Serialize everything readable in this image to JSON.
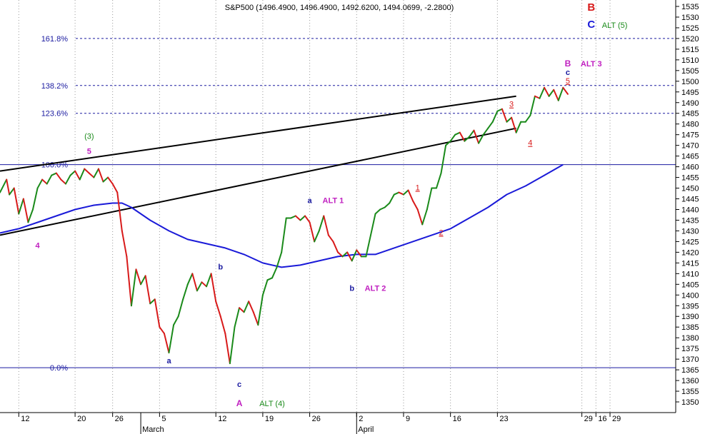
{
  "chart_data": {
    "type": "line",
    "title": "S&P500 (1496.4900, 1496.4900, 1492.6200, 1494.0699, -2.2800)",
    "ylim": [
      1345,
      1538
    ],
    "y_ticks": [
      1350,
      1355,
      1360,
      1365,
      1370,
      1375,
      1380,
      1385,
      1390,
      1395,
      1400,
      1405,
      1410,
      1415,
      1420,
      1425,
      1430,
      1435,
      1440,
      1445,
      1450,
      1455,
      1460,
      1465,
      1470,
      1475,
      1480,
      1485,
      1490,
      1495,
      1500,
      1505,
      1510,
      1515,
      1520,
      1525,
      1530,
      1535
    ],
    "x_range": [
      0,
      72
    ],
    "x_ticks": [
      {
        "x": 2,
        "label": "12"
      },
      {
        "x": 8,
        "label": "20"
      },
      {
        "x": 12,
        "label": "26"
      },
      {
        "x": 17,
        "label": "5"
      },
      {
        "x": 23,
        "label": "12"
      },
      {
        "x": 28,
        "label": "19"
      },
      {
        "x": 33,
        "label": "26"
      },
      {
        "x": 38,
        "label": "2"
      },
      {
        "x": 43,
        "label": "9"
      },
      {
        "x": 48,
        "label": "16"
      },
      {
        "x": 53,
        "label": "23"
      },
      {
        "x": 62,
        "label": "29"
      },
      {
        "x": 63.5,
        "label": "16"
      },
      {
        "x": 65,
        "label": "29"
      }
    ],
    "month_labels": [
      {
        "x": 15,
        "label": "March"
      },
      {
        "x": 38,
        "label": "April"
      }
    ],
    "fib_levels": [
      {
        "label": "161.8%",
        "y": 1520
      },
      {
        "label": "138.2%",
        "y": 1498
      },
      {
        "label": "123.6%",
        "y": 1485
      },
      {
        "label": "100.0%",
        "y": 1461
      },
      {
        "label": "0.0%",
        "y": 1366
      }
    ],
    "price": {
      "points": [
        [
          0,
          1448
        ],
        [
          0.7,
          1454
        ],
        [
          1,
          1447
        ],
        [
          1.5,
          1450
        ],
        [
          2,
          1438
        ],
        [
          2.5,
          1445
        ],
        [
          3,
          1434
        ],
        [
          3.5,
          1440
        ],
        [
          4,
          1450
        ],
        [
          4.5,
          1454
        ],
        [
          5,
          1452
        ],
        [
          5.5,
          1456
        ],
        [
          6,
          1457
        ],
        [
          6.5,
          1454
        ],
        [
          7,
          1452
        ],
        [
          7.5,
          1456
        ],
        [
          8,
          1458
        ],
        [
          8.5,
          1454
        ],
        [
          9,
          1459
        ],
        [
          9.5,
          1457
        ],
        [
          10,
          1455
        ],
        [
          10.5,
          1459
        ],
        [
          11,
          1453
        ],
        [
          11.5,
          1455
        ],
        [
          12,
          1452
        ],
        [
          12.5,
          1448
        ],
        [
          13,
          1430
        ],
        [
          13.5,
          1418
        ],
        [
          14,
          1395
        ],
        [
          14.5,
          1412
        ],
        [
          15,
          1405
        ],
        [
          15.5,
          1409
        ],
        [
          16,
          1396
        ],
        [
          16.5,
          1398
        ],
        [
          17,
          1385
        ],
        [
          17.5,
          1382
        ],
        [
          18,
          1373
        ],
        [
          18.5,
          1386
        ],
        [
          19,
          1390
        ],
        [
          19.5,
          1398
        ],
        [
          20,
          1405
        ],
        [
          20.5,
          1410
        ],
        [
          21,
          1402
        ],
        [
          21.5,
          1406
        ],
        [
          22,
          1404
        ],
        [
          22.5,
          1410
        ],
        [
          23,
          1397
        ],
        [
          23.5,
          1390
        ],
        [
          24,
          1382
        ],
        [
          24.5,
          1368
        ],
        [
          25,
          1385
        ],
        [
          25.5,
          1394
        ],
        [
          26,
          1392
        ],
        [
          26.5,
          1397
        ],
        [
          27,
          1392
        ],
        [
          27.5,
          1386
        ],
        [
          28,
          1400
        ],
        [
          28.5,
          1407
        ],
        [
          29,
          1408
        ],
        [
          29.5,
          1413
        ],
        [
          30,
          1420
        ],
        [
          30.5,
          1436
        ],
        [
          31,
          1436
        ],
        [
          31.5,
          1437
        ],
        [
          32,
          1435
        ],
        [
          32.5,
          1437
        ],
        [
          33,
          1434
        ],
        [
          33.5,
          1425
        ],
        [
          34,
          1430
        ],
        [
          34.5,
          1437
        ],
        [
          35,
          1428
        ],
        [
          35.5,
          1425
        ],
        [
          36,
          1420
        ],
        [
          36.5,
          1418
        ],
        [
          37,
          1420
        ],
        [
          37.5,
          1416
        ],
        [
          38,
          1421
        ],
        [
          38.5,
          1418
        ],
        [
          39,
          1418
        ],
        [
          39.5,
          1428
        ],
        [
          40,
          1438
        ],
        [
          40.5,
          1440
        ],
        [
          41,
          1441
        ],
        [
          41.5,
          1443
        ],
        [
          42,
          1447
        ],
        [
          42.5,
          1448
        ],
        [
          43,
          1447
        ],
        [
          43.5,
          1449
        ],
        [
          44,
          1444
        ],
        [
          44.5,
          1440
        ],
        [
          45,
          1433
        ],
        [
          45.5,
          1440
        ],
        [
          46,
          1450
        ],
        [
          46.5,
          1450
        ],
        [
          47,
          1457
        ],
        [
          47.5,
          1470
        ],
        [
          48,
          1472
        ],
        [
          48.5,
          1475
        ],
        [
          49,
          1476
        ],
        [
          49.5,
          1472
        ],
        [
          50,
          1474
        ],
        [
          50.5,
          1477
        ],
        [
          51,
          1471
        ],
        [
          51.5,
          1475
        ],
        [
          52,
          1478
        ],
        [
          52.5,
          1481
        ],
        [
          53,
          1486
        ],
        [
          53.5,
          1487
        ],
        [
          54,
          1481
        ],
        [
          54.5,
          1483
        ],
        [
          55,
          1476
        ],
        [
          55.5,
          1481
        ],
        [
          56,
          1481
        ],
        [
          56.5,
          1484
        ],
        [
          57,
          1493
        ],
        [
          57.5,
          1492
        ],
        [
          58,
          1497
        ],
        [
          58.5,
          1493
        ],
        [
          59,
          1496
        ],
        [
          59.5,
          1491
        ],
        [
          60,
          1497
        ],
        [
          60.5,
          1494
        ]
      ]
    },
    "moving_average": {
      "points": [
        [
          0,
          1429
        ],
        [
          2,
          1431
        ],
        [
          4,
          1434
        ],
        [
          6,
          1437
        ],
        [
          8,
          1440
        ],
        [
          10,
          1442
        ],
        [
          12,
          1443
        ],
        [
          13,
          1443
        ],
        [
          14,
          1441
        ],
        [
          16,
          1435
        ],
        [
          18,
          1430
        ],
        [
          20,
          1426
        ],
        [
          22,
          1424
        ],
        [
          24,
          1422
        ],
        [
          26,
          1419
        ],
        [
          28,
          1415
        ],
        [
          30,
          1413
        ],
        [
          32,
          1414
        ],
        [
          34,
          1416
        ],
        [
          36,
          1418
        ],
        [
          38,
          1419
        ],
        [
          40,
          1419
        ],
        [
          42,
          1422
        ],
        [
          44,
          1425
        ],
        [
          46,
          1428
        ],
        [
          48,
          1431
        ],
        [
          50,
          1436
        ],
        [
          52,
          1441
        ],
        [
          54,
          1447
        ],
        [
          56,
          1451
        ],
        [
          58,
          1456
        ],
        [
          60,
          1461
        ]
      ]
    },
    "trendlines": [
      {
        "points": [
          [
            0,
            1458
          ],
          [
            55,
            1493
          ]
        ]
      },
      {
        "points": [
          [
            0,
            1428
          ],
          [
            55,
            1478
          ]
        ]
      }
    ],
    "annotations": [
      {
        "text": "B",
        "x": 63,
        "y": 1533,
        "color": "#d81a1a",
        "size": 15,
        "weight": "bold"
      },
      {
        "text": "C",
        "x": 63,
        "y": 1525,
        "color": "#1a1ad8",
        "size": 15,
        "weight": "bold"
      },
      {
        "text": "ALT (5)",
        "x": 65.5,
        "y": 1525,
        "color": "#1a8a1a",
        "size": 11,
        "weight": "normal"
      },
      {
        "text": "B",
        "x": 60.5,
        "y": 1507,
        "color": "#c020c0",
        "size": 12,
        "weight": "bold"
      },
      {
        "text": "ALT 3",
        "x": 63,
        "y": 1507,
        "color": "#c020c0",
        "size": 11,
        "weight": "bold"
      },
      {
        "text": "c",
        "x": 60.5,
        "y": 1503,
        "color": "#1a1aa0",
        "size": 11,
        "weight": "bold"
      },
      {
        "text": "5",
        "x": 60.5,
        "y": 1499,
        "color": "#d81a1a",
        "size": 11,
        "weight": "normal",
        "underline": true
      },
      {
        "text": "3",
        "x": 54.5,
        "y": 1488,
        "color": "#d81a1a",
        "size": 11,
        "weight": "normal",
        "underline": true
      },
      {
        "text": "4",
        "x": 56.5,
        "y": 1470,
        "color": "#d81a1a",
        "size": 11,
        "weight": "normal",
        "underline": true
      },
      {
        "text": "(3)",
        "x": 9.5,
        "y": 1473,
        "color": "#1a8a1a",
        "size": 11,
        "weight": "normal"
      },
      {
        "text": "5",
        "x": 9.5,
        "y": 1466,
        "color": "#c020c0",
        "size": 11,
        "weight": "bold"
      },
      {
        "text": "4",
        "x": 4,
        "y": 1422,
        "color": "#c020c0",
        "size": 11,
        "weight": "bold"
      },
      {
        "text": "a",
        "x": 33,
        "y": 1443,
        "color": "#1a1aa0",
        "size": 11,
        "weight": "bold"
      },
      {
        "text": "ALT 1",
        "x": 35.5,
        "y": 1443,
        "color": "#c020c0",
        "size": 11,
        "weight": "bold"
      },
      {
        "text": "1",
        "x": 44.5,
        "y": 1449,
        "color": "#d81a1a",
        "size": 11,
        "weight": "normal",
        "underline": true
      },
      {
        "text": "2",
        "x": 47,
        "y": 1428,
        "color": "#d81a1a",
        "size": 11,
        "weight": "normal",
        "underline": true
      },
      {
        "text": "b",
        "x": 23.5,
        "y": 1412,
        "color": "#1a1aa0",
        "size": 11,
        "weight": "bold"
      },
      {
        "text": "b",
        "x": 37.5,
        "y": 1402,
        "color": "#1a1aa0",
        "size": 11,
        "weight": "bold"
      },
      {
        "text": "ALT 2",
        "x": 40,
        "y": 1402,
        "color": "#c020c0",
        "size": 11,
        "weight": "bold"
      },
      {
        "text": "a",
        "x": 18,
        "y": 1368,
        "color": "#1a1aa0",
        "size": 11,
        "weight": "bold"
      },
      {
        "text": "c",
        "x": 25.5,
        "y": 1357,
        "color": "#1a1aa0",
        "size": 11,
        "weight": "bold"
      },
      {
        "text": "A",
        "x": 25.5,
        "y": 1348,
        "color": "#c020c0",
        "size": 12,
        "weight": "bold"
      },
      {
        "text": "ALT (4)",
        "x": 29,
        "y": 1348,
        "color": "#1a8a1a",
        "size": 11,
        "weight": "normal"
      }
    ],
    "colors": {
      "rising": "#1a8a1a",
      "falling": "#d81a1a",
      "moving_average": "#1a1ad8",
      "trendline": "#000000",
      "fib_line": "#1a1aa0"
    },
    "grid": "vertical dotted",
    "legend": "none"
  }
}
